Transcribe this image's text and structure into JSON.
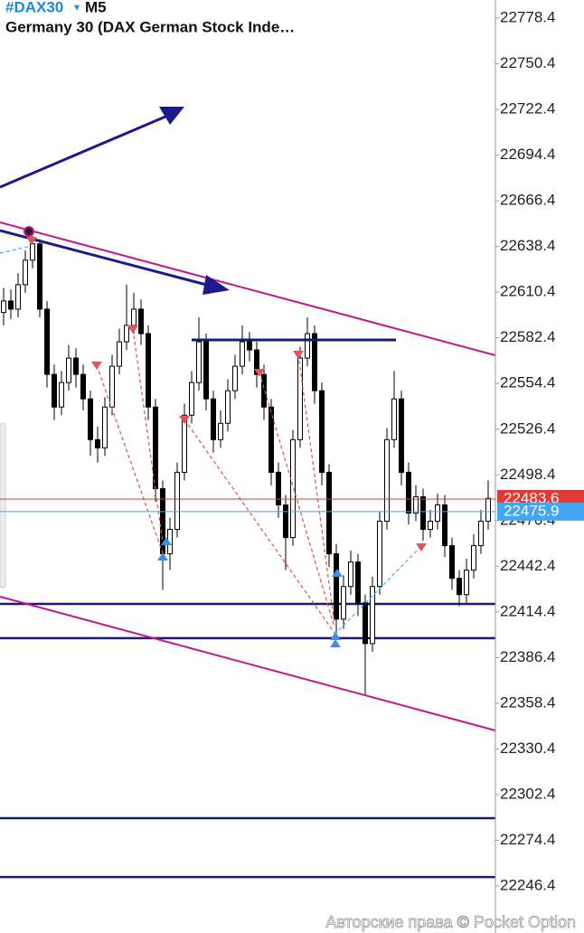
{
  "chart_data": {
    "type": "candlestick",
    "symbol": "#DAX30",
    "timeframe": "M5",
    "title": "Germany 30 (DAX German Stock Inde…",
    "open": [
      22598,
      22605,
      22600,
      22615,
      22630,
      22640,
      22600,
      22560,
      22540,
      22555,
      22570,
      22560,
      22545,
      22520,
      22515,
      22540,
      22565,
      22580,
      22590,
      22600,
      22585,
      22540,
      22490,
      22450,
      22465,
      22500,
      22535,
      22555,
      22580,
      22545,
      22520,
      22530,
      22550,
      22565,
      22580,
      22575,
      22560,
      22540,
      22500,
      22480,
      22460,
      22520,
      22570,
      22585,
      22550,
      22500,
      22450,
      22410,
      22430,
      22445,
      22420,
      22395,
      22430,
      22470,
      22520,
      22545,
      22500,
      22475,
      22485,
      22465,
      22470,
      22480,
      22455,
      22435,
      22425,
      22440,
      22455,
      22470
    ],
    "high": [
      22613,
      22612,
      22622,
      22636,
      22645,
      22643,
      22605,
      22566,
      22562,
      22578,
      22576,
      22566,
      22550,
      22528,
      22546,
      22572,
      22588,
      22615,
      22610,
      22606,
      22590,
      22545,
      22495,
      22472,
      22506,
      22542,
      22562,
      22595,
      22585,
      22550,
      22538,
      22557,
      22572,
      22590,
      22586,
      22580,
      22566,
      22545,
      22506,
      22486,
      22526,
      22577,
      22595,
      22590,
      22555,
      22505,
      22456,
      22437,
      22452,
      22450,
      22425,
      22436,
      22476,
      22527,
      22562,
      22550,
      22506,
      22492,
      22490,
      22477,
      22487,
      22486,
      22460,
      22440,
      22447,
      22462,
      22477,
      22495
    ],
    "low": [
      22590,
      22594,
      22595,
      22610,
      22625,
      22595,
      22552,
      22532,
      22535,
      22550,
      22552,
      22538,
      22510,
      22506,
      22510,
      22535,
      22560,
      22575,
      22585,
      22578,
      22532,
      22482,
      22428,
      22440,
      22460,
      22495,
      22530,
      22550,
      22538,
      22512,
      22515,
      22525,
      22545,
      22560,
      22568,
      22552,
      22532,
      22492,
      22472,
      22440,
      22455,
      22515,
      22565,
      22542,
      22492,
      22442,
      22398,
      22404,
      22425,
      22412,
      22364,
      22390,
      22425,
      22465,
      22515,
      22492,
      22468,
      22470,
      22458,
      22460,
      22465,
      22448,
      22428,
      22418,
      22420,
      22435,
      22450,
      22465
    ],
    "close": [
      22605,
      22600,
      22615,
      22630,
      22640,
      22600,
      22560,
      22540,
      22555,
      22570,
      22560,
      22545,
      22520,
      22515,
      22540,
      22565,
      22580,
      22590,
      22600,
      22585,
      22540,
      22490,
      22450,
      22465,
      22500,
      22535,
      22555,
      22580,
      22545,
      22520,
      22530,
      22550,
      22565,
      22580,
      22575,
      22560,
      22540,
      22500,
      22480,
      22460,
      22520,
      22570,
      22585,
      22550,
      22500,
      22450,
      22410,
      22430,
      22445,
      22420,
      22395,
      22430,
      22470,
      22520,
      22545,
      22500,
      22475,
      22485,
      22465,
      22470,
      22480,
      22455,
      22435,
      22425,
      22440,
      22455,
      22470,
      22484
    ],
    "ylim": [
      22217.6,
      22789.5
    ],
    "yticks": [
      22778.4,
      22750.4,
      22722.4,
      22694.4,
      22666.4,
      22638.4,
      22610.4,
      22582.4,
      22554.4,
      22526.4,
      22498.4,
      22470.4,
      22442.4,
      22414.4,
      22386.4,
      22358.4,
      22330.4,
      22302.4,
      22274.4,
      22246.4
    ],
    "bid_price": 22483.6,
    "bid_color": "#e53935",
    "ask_price": 22475.9,
    "ask_color": "#42a5f5",
    "levels": [
      22419.3,
      22398.3,
      22288.0,
      22251.9
    ],
    "level_color": "#1a1a6e",
    "watermark": "Авторские права © Pocket Option"
  }
}
